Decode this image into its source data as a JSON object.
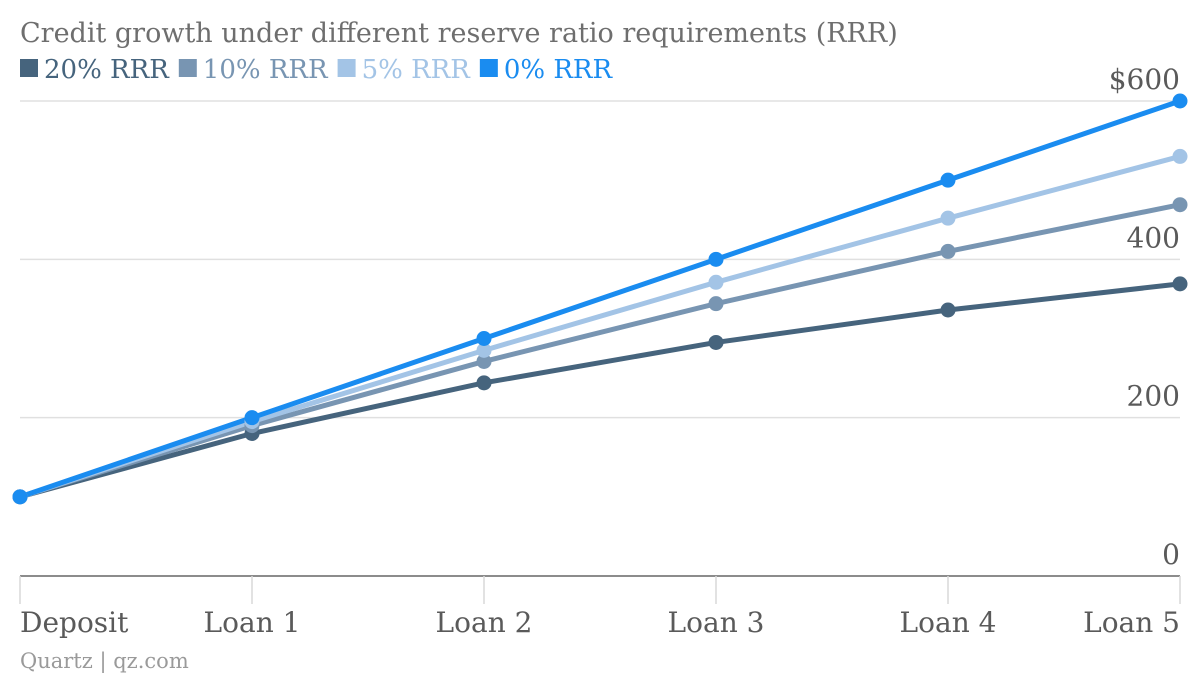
{
  "chart_data": {
    "type": "line",
    "title": "Credit growth under different reserve ratio requirements (RRR)",
    "categories": [
      "Deposit",
      "Loan 1",
      "Loan 2",
      "Loan 3",
      "Loan 4",
      "Loan 5"
    ],
    "series": [
      {
        "name": "20% RRR",
        "color": "#46647d",
        "values": [
          100,
          180,
          244,
          295,
          336,
          369
        ]
      },
      {
        "name": "10% RRR",
        "color": "#7895b2",
        "values": [
          100,
          190,
          271,
          344,
          410,
          469
        ]
      },
      {
        "name": "5% RRR",
        "color": "#a3c4e6",
        "values": [
          100,
          195,
          285,
          371,
          452,
          530
        ]
      },
      {
        "name": "0% RRR",
        "color": "#1a8cf0",
        "values": [
          100,
          200,
          300,
          400,
          500,
          600
        ]
      }
    ],
    "y_ticks": [
      {
        "value": 0,
        "label": "0"
      },
      {
        "value": 200,
        "label": "200"
      },
      {
        "value": 400,
        "label": "400"
      },
      {
        "value": 600,
        "label": "$600"
      }
    ],
    "ylim": [
      0,
      600
    ],
    "grid": true,
    "legend_position": "top-left",
    "source": "Quartz | qz.com"
  }
}
